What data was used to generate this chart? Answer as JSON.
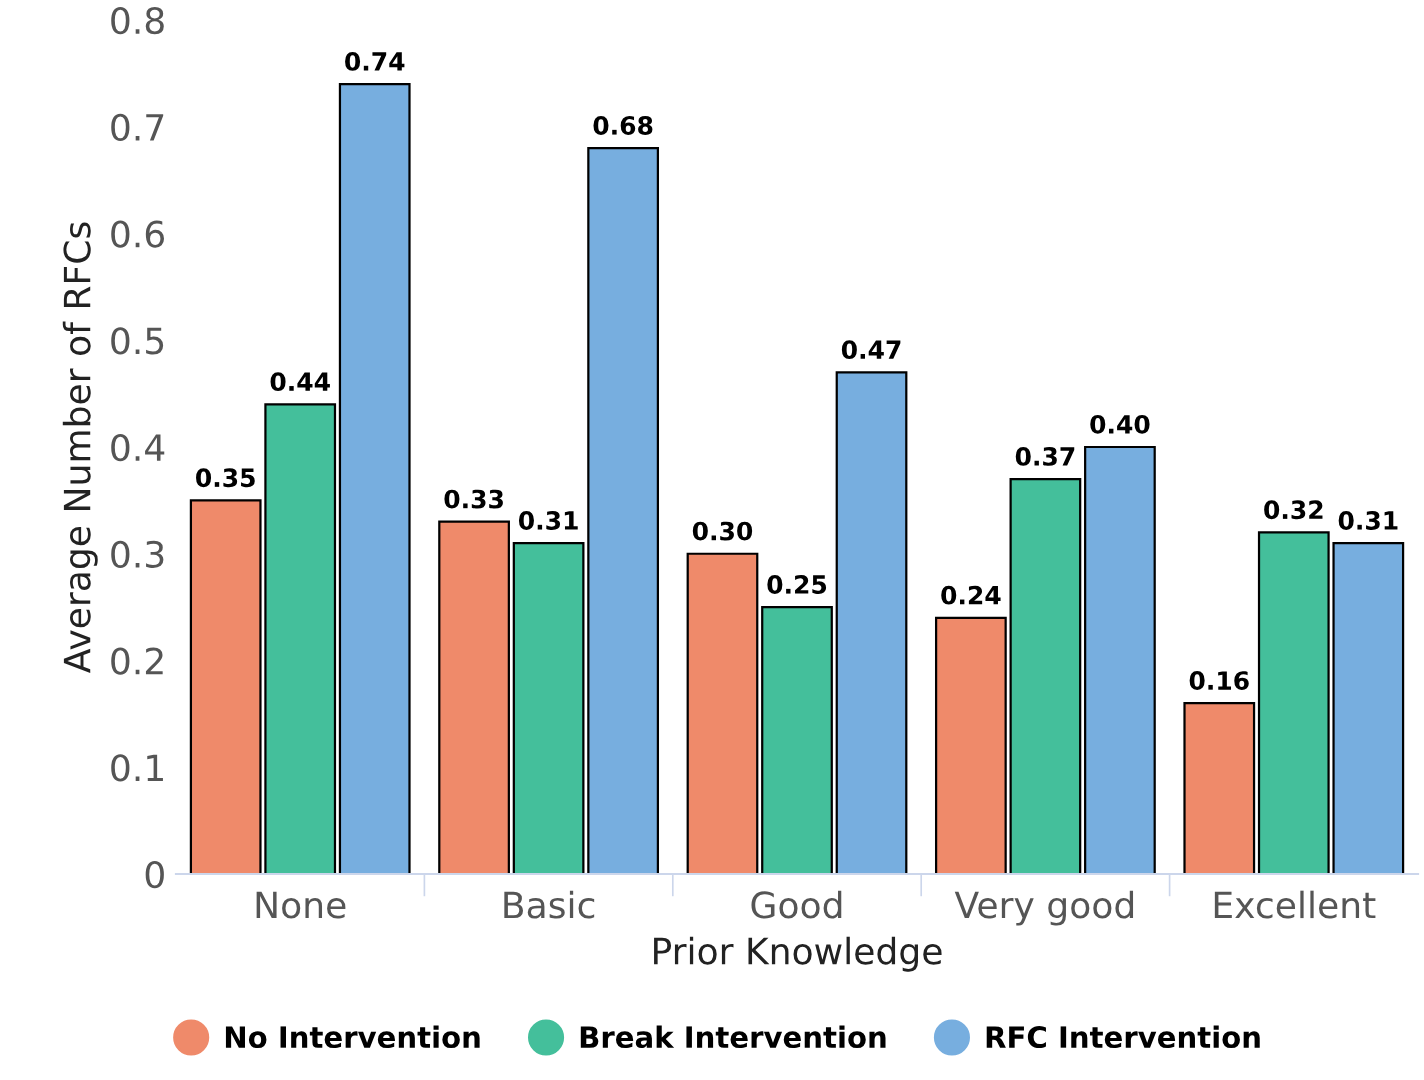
{
  "chart_data": {
    "type": "bar",
    "xlabel": "Prior Knowledge",
    "ylabel": "Average Number of RFCs",
    "categories": [
      "None",
      "Basic",
      "Good",
      "Very good",
      "Excellent"
    ],
    "series": [
      {
        "name": "No Intervention",
        "color": "#ef8a6a",
        "values": [
          0.35,
          0.33,
          0.3,
          0.24,
          0.16
        ],
        "value_labels": [
          "0.35",
          "0.33",
          "0.30",
          "0.24",
          "0.16"
        ]
      },
      {
        "name": "Break Intervention",
        "color": "#44bf9b",
        "values": [
          0.44,
          0.31,
          0.25,
          0.37,
          0.32
        ],
        "value_labels": [
          "0.44",
          "0.31",
          "0.25",
          "0.37",
          "0.32"
        ]
      },
      {
        "name": "RFC Intervention",
        "color": "#77aedf",
        "values": [
          0.74,
          0.68,
          0.47,
          0.4,
          0.31
        ],
        "value_labels": [
          "0.74",
          "0.68",
          "0.47",
          "0.40",
          "0.31"
        ]
      }
    ],
    "ylim": [
      0,
      0.8
    ],
    "yticks": [
      0,
      0.1,
      0.2,
      0.3,
      0.4,
      0.5,
      0.6,
      0.7,
      0.8
    ],
    "grid": false,
    "legend": "bottom"
  }
}
